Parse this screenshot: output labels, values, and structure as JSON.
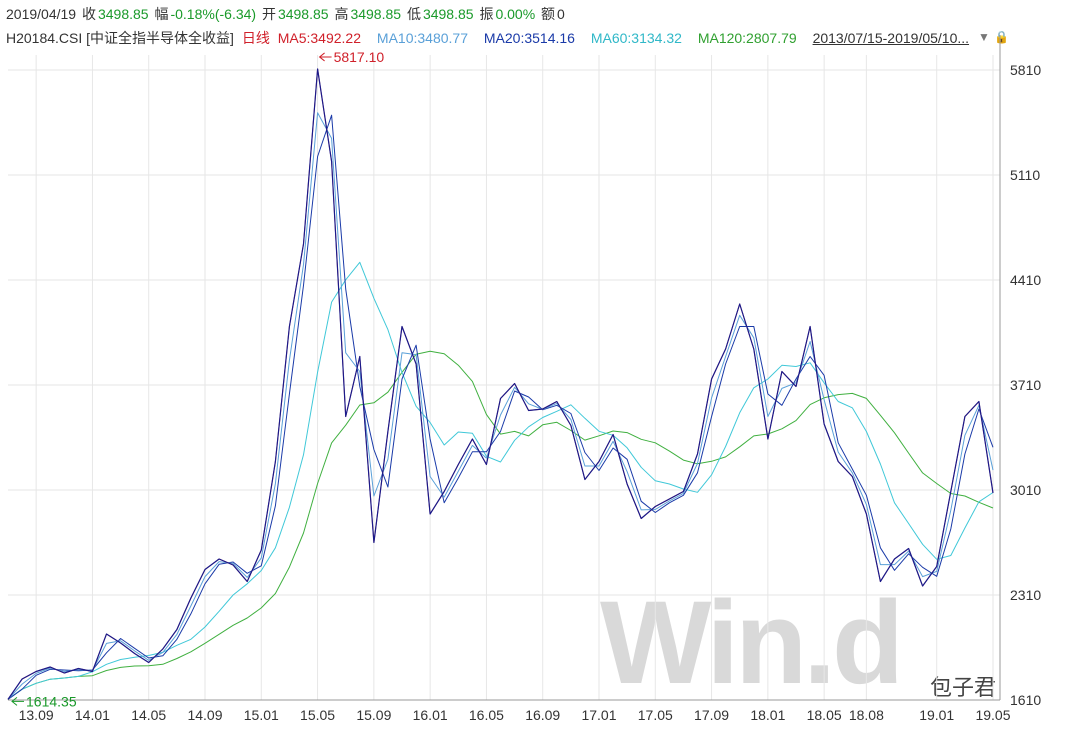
{
  "info": {
    "date": "2019/04/19",
    "close_label": "收",
    "close": "3498.85",
    "chg_label": "幅",
    "chg": "-0.18%(-6.34)",
    "open_label": "开",
    "open": "3498.85",
    "high_label": "高",
    "high": "3498.85",
    "low_label": "低",
    "low": "3498.85",
    "amp_label": "振",
    "amp": "0.00%",
    "amount_label": "额",
    "amount": "0"
  },
  "legend": {
    "code": "H20184.CSI [中证全指半导体全收益]",
    "period": "日线",
    "ma5": "MA5:3492.22",
    "ma10": "MA10:3480.77",
    "ma20": "MA20:3514.16",
    "ma60": "MA60:3134.32",
    "ma120": "MA120:2807.79",
    "range": "2013/07/15-2019/05/10..."
  },
  "colors": {
    "price": "#1a1a8a",
    "ma5": "#d0202a",
    "ma10": "#5aa0d8",
    "ma20": "#1a3aa8",
    "ma60": "#40c8d8",
    "ma120": "#40b040",
    "grid": "#e6e6e6"
  },
  "watermark": "Win.d",
  "brand": "包子君",
  "chart_data": {
    "type": "line",
    "title": "",
    "ylim": [
      1610,
      5910
    ],
    "y_ticks": [
      "5810",
      "5110",
      "4410",
      "3710",
      "3010",
      "2310",
      "1610"
    ],
    "x_ticks": [
      "13.09",
      "14.01",
      "14.05",
      "14.09",
      "15.01",
      "15.05",
      "15.09",
      "16.01",
      "16.05",
      "16.09",
      "17.01",
      "17.05",
      "17.09",
      "18.01",
      "18.05",
      "18.08",
      "19.01",
      "19.05"
    ],
    "annotations": {
      "max": "5817.10",
      "min": "1614.35"
    },
    "series": [
      {
        "name": "H20184.CSI",
        "points": [
          [
            "13.07",
            1614
          ],
          [
            "13.08",
            1750
          ],
          [
            "13.09",
            1800
          ],
          [
            "13.10",
            1830
          ],
          [
            "13.11",
            1790
          ],
          [
            "13.12",
            1820
          ],
          [
            "14.01",
            1800
          ],
          [
            "14.02",
            2050
          ],
          [
            "14.03",
            1990
          ],
          [
            "14.04",
            1920
          ],
          [
            "14.05",
            1860
          ],
          [
            "14.06",
            1950
          ],
          [
            "14.07",
            2080
          ],
          [
            "14.08",
            2290
          ],
          [
            "14.09",
            2480
          ],
          [
            "14.10",
            2550
          ],
          [
            "14.11",
            2510
          ],
          [
            "14.12",
            2400
          ],
          [
            "15.01",
            2610
          ],
          [
            "15.02",
            3200
          ],
          [
            "15.03",
            4100
          ],
          [
            "15.04",
            4650
          ],
          [
            "15.05",
            5817
          ],
          [
            "15.06",
            5200
          ],
          [
            "15.07",
            3500
          ],
          [
            "15.08",
            3900
          ],
          [
            "15.09",
            2660
          ],
          [
            "15.10",
            3400
          ],
          [
            "15.11",
            4100
          ],
          [
            "15.12",
            3850
          ],
          [
            "16.01",
            2850
          ],
          [
            "16.02",
            3000
          ],
          [
            "16.03",
            3180
          ],
          [
            "16.04",
            3350
          ],
          [
            "16.05",
            3180
          ],
          [
            "16.06",
            3620
          ],
          [
            "16.07",
            3720
          ],
          [
            "16.08",
            3540
          ],
          [
            "16.09",
            3550
          ],
          [
            "16.10",
            3600
          ],
          [
            "16.11",
            3440
          ],
          [
            "16.12",
            3080
          ],
          [
            "17.01",
            3200
          ],
          [
            "17.02",
            3380
          ],
          [
            "17.03",
            3050
          ],
          [
            "17.04",
            2820
          ],
          [
            "17.05",
            2900
          ],
          [
            "17.06",
            2950
          ],
          [
            "17.07",
            3000
          ],
          [
            "17.08",
            3250
          ],
          [
            "17.09",
            3750
          ],
          [
            "17.10",
            3950
          ],
          [
            "17.11",
            4250
          ],
          [
            "17.12",
            3950
          ],
          [
            "18.01",
            3350
          ],
          [
            "18.02",
            3800
          ],
          [
            "18.03",
            3700
          ],
          [
            "18.04",
            4100
          ],
          [
            "18.05",
            3450
          ],
          [
            "18.06",
            3200
          ],
          [
            "18.07",
            3100
          ],
          [
            "18.08",
            2850
          ],
          [
            "18.09",
            2400
          ],
          [
            "18.10",
            2550
          ],
          [
            "18.11",
            2620
          ],
          [
            "18.12",
            2370
          ],
          [
            "19.01",
            2500
          ],
          [
            "19.02",
            3000
          ],
          [
            "19.03",
            3500
          ],
          [
            "19.04",
            3600
          ],
          [
            "19.05",
            2990
          ]
        ]
      }
    ]
  }
}
